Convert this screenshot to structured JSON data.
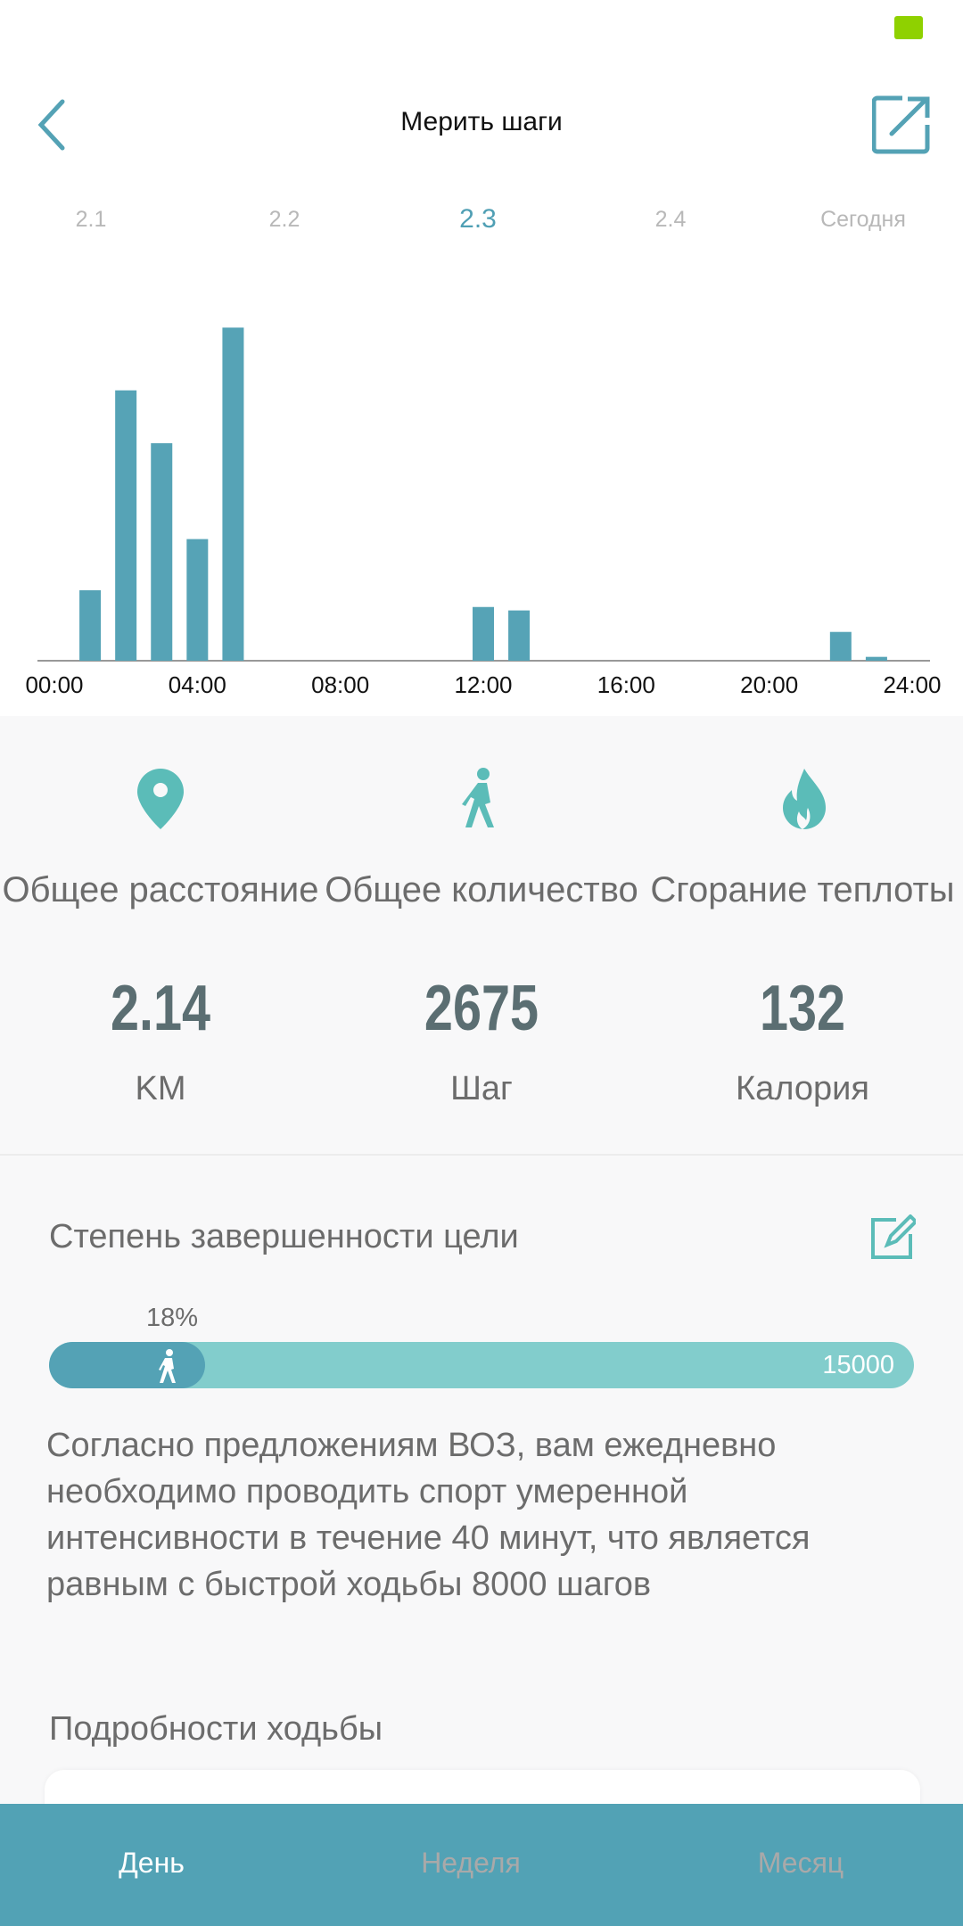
{
  "status_bar": {
    "battery_color": "#8fd100"
  },
  "header": {
    "title": "Мерить шаги",
    "back_icon": "chevron-left-icon",
    "share_icon": "external-share-icon"
  },
  "date_tabs": [
    {
      "label": "2.1"
    },
    {
      "label": "2.2"
    },
    {
      "label": "2.3",
      "active": true
    },
    {
      "label": "2.4"
    },
    {
      "label": "Сегодня"
    }
  ],
  "chart_data": {
    "type": "bar",
    "x": [
      1,
      2,
      3,
      4,
      5,
      12,
      13,
      22,
      23
    ],
    "values": [
      164,
      629,
      506,
      283,
      775,
      125,
      117,
      67,
      9
    ],
    "xlim": [
      0,
      24
    ],
    "ylim": [
      0,
      780
    ],
    "x_tick_labels": [
      "00:00",
      "04:00",
      "08:00",
      "12:00",
      "16:00",
      "20:00",
      "24:00"
    ],
    "color": "#56a3b6",
    "grid": false
  },
  "stats": [
    {
      "icon": "location-pin-icon",
      "label": "Общее расстояние",
      "value": "2.14",
      "unit": "KM"
    },
    {
      "icon": "walking-person-icon",
      "label": "Общее количество",
      "value": "2675",
      "unit": "Шаг"
    },
    {
      "icon": "flame-icon",
      "label": "Сгорание теплоты",
      "value": "132",
      "unit": "Калория"
    }
  ],
  "goal": {
    "title": "Степень завершенности цели",
    "percent_label": "18%",
    "progress": 0.18,
    "target": "15000",
    "edit_icon": "edit-icon"
  },
  "advice": "Согласно предложениям ВОЗ, вам ежедневно необходимо проводить спорт умеренной интенсивности в течение 40 минут, что является равным с быстрой ходьбы 8000 шагов",
  "details_title": "Подробности ходьбы",
  "bottom_nav": [
    {
      "label": "День",
      "active": true
    },
    {
      "label": "Неделя"
    },
    {
      "label": "Месяц"
    }
  ],
  "colors": {
    "accent": "#52a2b5",
    "icon": "#5bbcb8",
    "progress_track": "#82cdcc",
    "value_text": "#5b6e72"
  }
}
